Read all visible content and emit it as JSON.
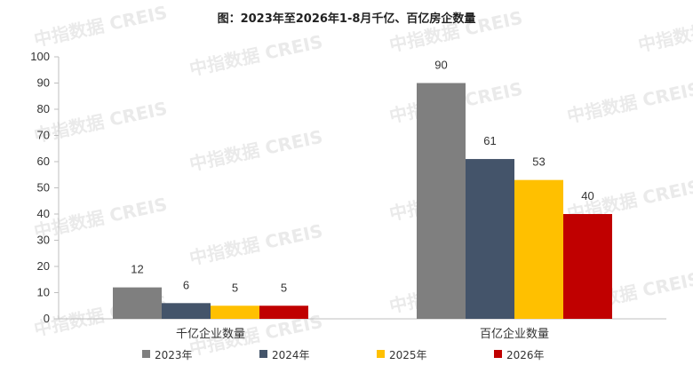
{
  "chart_data": {
    "type": "bar",
    "title": "图：2023年至2026年1-8月千亿、百亿房企数量",
    "categories": [
      "千亿企业数量",
      "百亿企业数量"
    ],
    "series": [
      {
        "name": "2023年",
        "values": [
          12,
          90
        ],
        "color": "#7f7f7f"
      },
      {
        "name": "2024年",
        "values": [
          6,
          61
        ],
        "color": "#44546a"
      },
      {
        "name": "2025年",
        "values": [
          5,
          53
        ],
        "color": "#ffc000"
      },
      {
        "name": "2026年",
        "values": [
          5,
          40
        ],
        "color": "#c00000"
      }
    ],
    "ylim": [
      0,
      100
    ],
    "yticks": [
      0,
      10,
      20,
      30,
      40,
      50,
      60,
      70,
      80,
      90,
      100
    ],
    "grid": false,
    "legend": "bottom",
    "data_labels": true
  },
  "watermark": "中指数据 CREIS"
}
